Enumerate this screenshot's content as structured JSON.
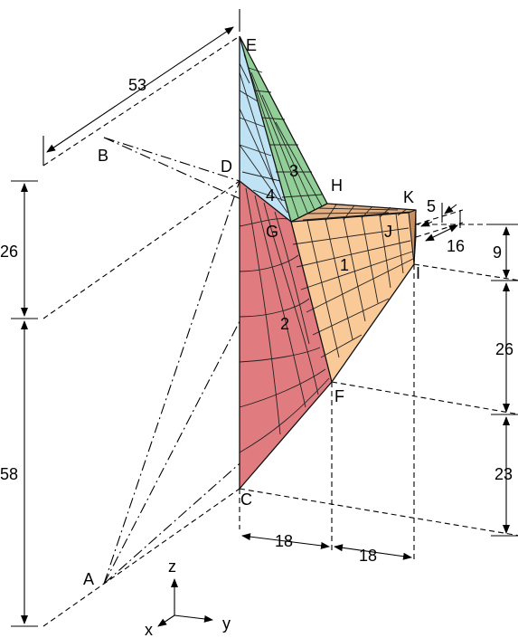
{
  "colors": {
    "panel_1": "#f9c998",
    "panel_2": "#e07c80",
    "panel_3": "#92cf98",
    "panel_4": "#bfe3f5",
    "panel_HK": "#e2b084",
    "line": "#000000"
  },
  "points": {
    "A": "A",
    "B": "B",
    "C": "C",
    "D": "D",
    "E": "E",
    "F": "F",
    "G": "G",
    "H": "H",
    "I": "I",
    "J": "J",
    "K": "K"
  },
  "panels": {
    "p1": "1",
    "p2": "2",
    "p3": "3",
    "p4": "4"
  },
  "dimensions": {
    "d53": "53",
    "d26_left": "26",
    "d58": "58",
    "d18_a": "18",
    "d18_b": "18",
    "d5": "5",
    "d16": "16",
    "d9": "9",
    "d26_right": "26",
    "d23": "23"
  },
  "axes": {
    "x": "x",
    "y": "y",
    "z": "z"
  }
}
